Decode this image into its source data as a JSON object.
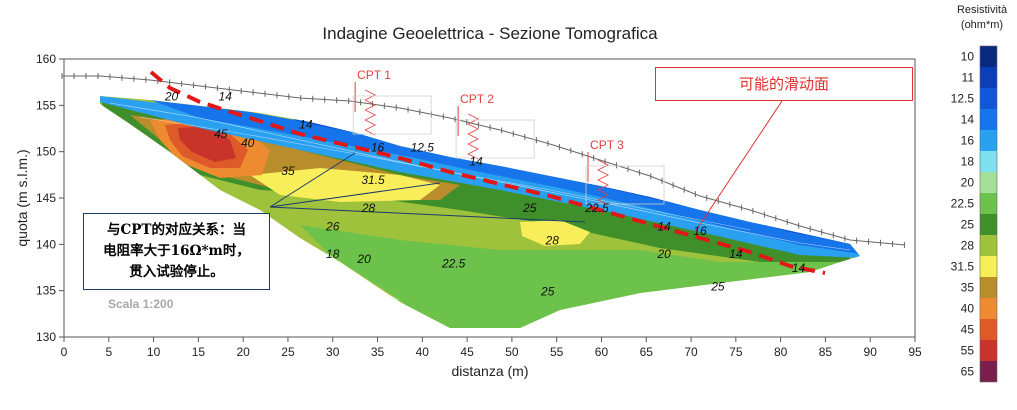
{
  "chart_data": {
    "type": "heatmap",
    "title": "Indagine Geoelettrica - Sezione Tomografica",
    "xlabel": "distanza (m)",
    "ylabel": "quota (m s.l.m.)",
    "xlim": [
      0,
      95
    ],
    "ylim": [
      130,
      160
    ],
    "xticks": [
      0,
      5,
      10,
      15,
      20,
      25,
      30,
      35,
      40,
      45,
      50,
      55,
      60,
      65,
      70,
      75,
      80,
      85,
      90,
      95
    ],
    "yticks": [
      130,
      135,
      140,
      145,
      150,
      155,
      160
    ],
    "scale_note": "Scala 1:200",
    "colorbar": {
      "title": "Resistività",
      "unit": "(ohm*m)",
      "levels": [
        "10",
        "11",
        "12.5",
        "14",
        "16",
        "18",
        "20",
        "22.5",
        "25",
        "28",
        "31.5",
        "35",
        "40",
        "45",
        "55",
        "65"
      ],
      "colors": [
        "#0a2a80",
        "#0b3fb8",
        "#0f57d8",
        "#1675ea",
        "#2aa0f0",
        "#7fe0ee",
        "#a4e09a",
        "#6cc24a",
        "#3f8f2a",
        "#9fc23c",
        "#f7ee5a",
        "#b98c2c",
        "#ee8a30",
        "#de5a28",
        "#c8342a",
        "#7a1e4e"
      ]
    },
    "contour_labels": [
      {
        "text": "20",
        "x": 12,
        "y": 155.5
      },
      {
        "text": "14",
        "x": 18,
        "y": 155.5
      },
      {
        "text": "45",
        "x": 17.5,
        "y": 151.5
      },
      {
        "text": "40",
        "x": 20.5,
        "y": 150.5
      },
      {
        "text": "35",
        "x": 25,
        "y": 147.5
      },
      {
        "text": "14",
        "x": 27,
        "y": 152.5
      },
      {
        "text": "16",
        "x": 35,
        "y": 150
      },
      {
        "text": "12.5",
        "x": 40,
        "y": 150
      },
      {
        "text": "31.5",
        "x": 34.5,
        "y": 146.5
      },
      {
        "text": "14",
        "x": 46,
        "y": 148.5
      },
      {
        "text": "28",
        "x": 34,
        "y": 143.5
      },
      {
        "text": "26",
        "x": 30,
        "y": 141.5
      },
      {
        "text": "25",
        "x": 52,
        "y": 143.5
      },
      {
        "text": "22.5",
        "x": 59.5,
        "y": 143.5
      },
      {
        "text": "28",
        "x": 54.5,
        "y": 140
      },
      {
        "text": "18",
        "x": 30,
        "y": 138.5
      },
      {
        "text": "20",
        "x": 33.5,
        "y": 138
      },
      {
        "text": "22.5",
        "x": 43.5,
        "y": 137.5
      },
      {
        "text": "25",
        "x": 54,
        "y": 134.5
      },
      {
        "text": "14",
        "x": 67,
        "y": 141.5
      },
      {
        "text": "16",
        "x": 71,
        "y": 141
      },
      {
        "text": "20",
        "x": 67,
        "y": 138.5
      },
      {
        "text": "14",
        "x": 75,
        "y": 138.5
      },
      {
        "text": "14",
        "x": 82,
        "y": 137
      },
      {
        "text": "25",
        "x": 73,
        "y": 135
      }
    ],
    "cpt_markers": [
      {
        "label": "CPT 1",
        "x": 32.5
      },
      {
        "label": "CPT 2",
        "x": 44
      },
      {
        "label": "CPT 3",
        "x": 58.5
      }
    ]
  },
  "annotations": {
    "correlation_note_lines": [
      "与CPT的对应关系：当",
      "电阻率大于16Ω*m时，",
      "贯入试验停止。"
    ],
    "slide_surface_label": "可能的滑动面"
  }
}
